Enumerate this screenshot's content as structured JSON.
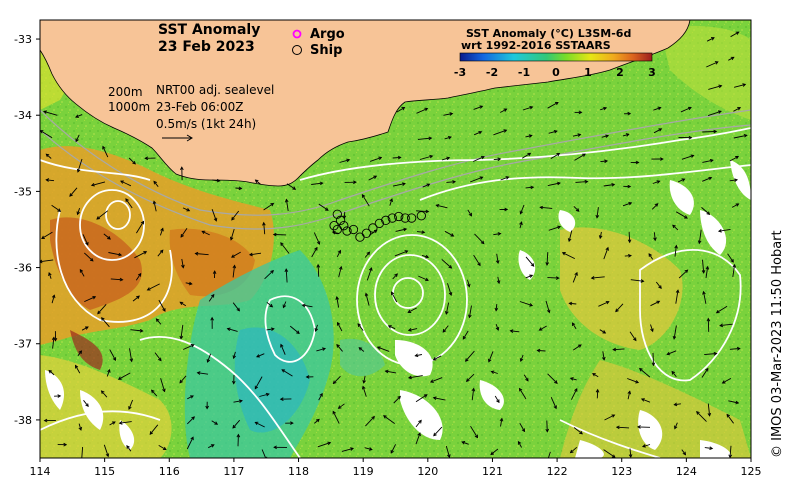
{
  "title": {
    "line1": "SST Anomaly",
    "line2": "23 Feb 2023"
  },
  "legend": {
    "argo": "Argo",
    "ship": "Ship",
    "argo_color": "#ff00ff",
    "ship_color": "#000000"
  },
  "info": {
    "depth1": "200m",
    "depth2": "1000m",
    "product": "NRT00 adj. sealevel",
    "time": "23-Feb 06:00Z",
    "scale": "0.5m/s (1kt 24h)"
  },
  "colorbar": {
    "title1": "SST Anomaly (°C) L3SM-6d",
    "title2": "wrt 1992-2016 SSTAARS",
    "ticks": [
      "-3",
      "-2",
      "-1",
      "0",
      "1",
      "2",
      "3"
    ],
    "colors": [
      "#0a1a8c",
      "#1466e0",
      "#1ec8dc",
      "#32c878",
      "#78dc28",
      "#e6e614",
      "#f0aa1e",
      "#dc641e",
      "#9c1e1e"
    ]
  },
  "axes": {
    "x_ticks": [
      "114",
      "115",
      "116",
      "117",
      "118",
      "119",
      "120",
      "121",
      "122",
      "123",
      "124",
      "125"
    ],
    "y_ticks": [
      "-33",
      "-34",
      "-35",
      "-36",
      "-37",
      "-38"
    ]
  },
  "copyright": "© IMOS 03-Mar-2023 11:50 Hobart",
  "colors": {
    "land": "#f7c497",
    "ocean_base": "#7ad23c",
    "contour": "#ffffff"
  },
  "ship_track": [
    {
      "lon": 118.6,
      "lat": -35.3
    },
    {
      "lon": 118.65,
      "lat": -35.38
    },
    {
      "lon": 118.7,
      "lat": -35.45
    },
    {
      "lon": 118.75,
      "lat": -35.52
    },
    {
      "lon": 118.85,
      "lat": -35.5
    },
    {
      "lon": 118.95,
      "lat": -35.6
    },
    {
      "lon": 119.05,
      "lat": -35.55
    },
    {
      "lon": 119.15,
      "lat": -35.48
    },
    {
      "lon": 119.25,
      "lat": -35.42
    },
    {
      "lon": 119.35,
      "lat": -35.38
    },
    {
      "lon": 119.45,
      "lat": -35.35
    },
    {
      "lon": 119.55,
      "lat": -35.33
    },
    {
      "lon": 119.65,
      "lat": -35.35
    },
    {
      "lon": 119.75,
      "lat": -35.35
    },
    {
      "lon": 119.9,
      "lat": -35.32
    },
    {
      "lon": 118.55,
      "lat": -35.45
    },
    {
      "lon": 118.6,
      "lat": -35.5
    }
  ]
}
